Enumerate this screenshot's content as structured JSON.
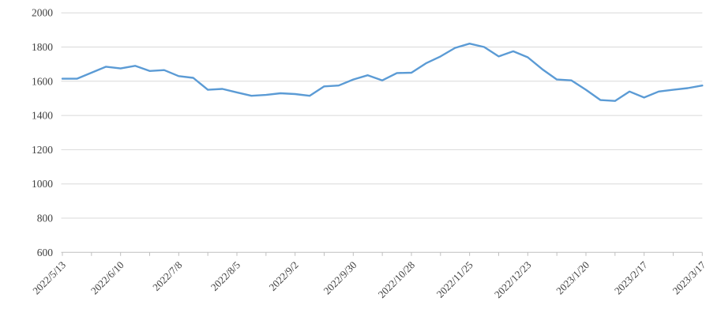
{
  "chart_data": {
    "type": "line",
    "title": "",
    "xlabel": "",
    "ylabel": "",
    "x": [
      "2022/5/13",
      "2022/5/20",
      "2022/5/27",
      "2022/6/3",
      "2022/6/10",
      "2022/6/17",
      "2022/6/24",
      "2022/7/1",
      "2022/7/8",
      "2022/7/15",
      "2022/7/22",
      "2022/7/29",
      "2022/8/5",
      "2022/8/12",
      "2022/8/19",
      "2022/8/26",
      "2022/9/2",
      "2022/9/9",
      "2022/9/16",
      "2022/9/23",
      "2022/9/30",
      "2022/10/7",
      "2022/10/14",
      "2022/10/21",
      "2022/10/28",
      "2022/11/4",
      "2022/11/11",
      "2022/11/18",
      "2022/11/25",
      "2022/12/2",
      "2022/12/9",
      "2022/12/16",
      "2022/12/23",
      "2022/12/30",
      "2023/1/6",
      "2023/1/13",
      "2023/1/20",
      "2023/1/27",
      "2023/2/3",
      "2023/2/10",
      "2023/2/17",
      "2023/2/24",
      "2023/3/3",
      "2023/3/10",
      "2023/3/17"
    ],
    "series": [
      {
        "name": "series-1",
        "color": "#5B9BD5",
        "values": [
          1615,
          1615,
          1650,
          1685,
          1675,
          1690,
          1660,
          1665,
          1630,
          1620,
          1550,
          1555,
          1535,
          1515,
          1520,
          1530,
          1525,
          1515,
          1570,
          1575,
          1610,
          1635,
          1605,
          1648,
          1650,
          1705,
          1745,
          1795,
          1820,
          1800,
          1745,
          1775,
          1740,
          1670,
          1610,
          1605,
          1550,
          1490,
          1485,
          1540,
          1505,
          1540,
          1550,
          1560,
          1575
        ]
      }
    ],
    "y_ticks": [
      600,
      800,
      1000,
      1200,
      1400,
      1600,
      1800,
      2000
    ],
    "ylim": [
      600,
      2000
    ],
    "x_label_every": 4,
    "x_tick_every": 2,
    "x_label_rotation_deg": -45,
    "grid": "horizontal",
    "legend_position": "none",
    "gridline_color": "#D9D9D9",
    "axis_color": "#BFBFBF",
    "tick_color": "#BFBFBF",
    "label_color": "#404040",
    "background_color": "#FFFFFF"
  }
}
